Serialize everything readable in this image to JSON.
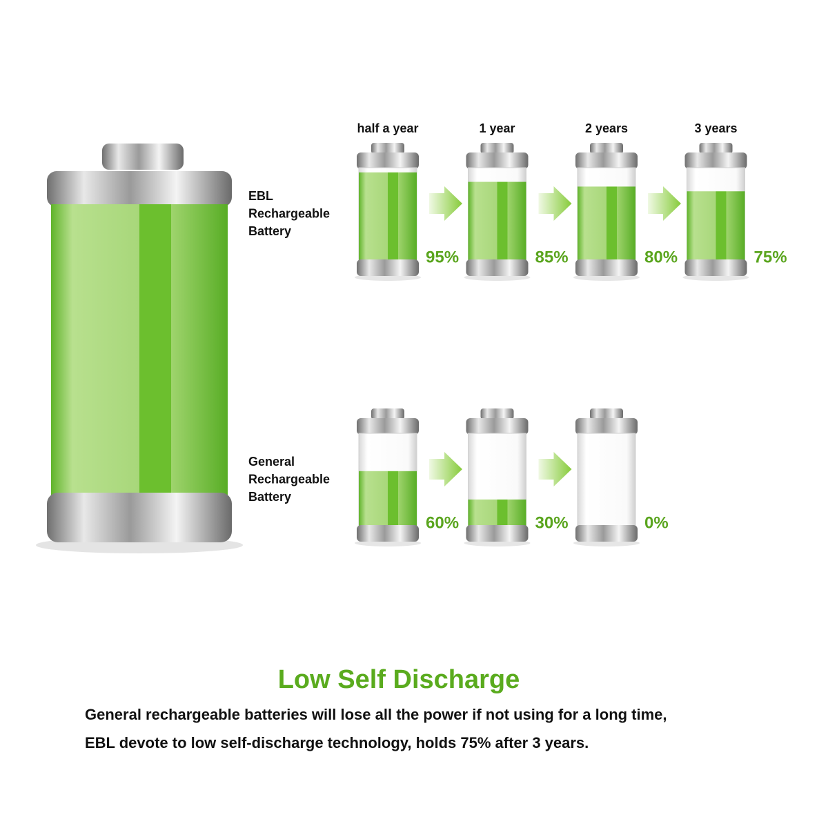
{
  "periods": [
    "half a year",
    "1 year",
    "2 years",
    "3 years"
  ],
  "rows": [
    {
      "label": [
        "EBL",
        "Rechargeable",
        "Battery"
      ],
      "levels": [
        {
          "value": 95,
          "label": "95%"
        },
        {
          "value": 85,
          "label": "85%"
        },
        {
          "value": 80,
          "label": "80%"
        },
        {
          "value": 75,
          "label": "75%"
        }
      ]
    },
    {
      "label": [
        "General",
        "Rechargeable",
        "Battery"
      ],
      "levels": [
        {
          "value": 60,
          "label": "60%"
        },
        {
          "value": 30,
          "label": "30%"
        },
        {
          "value": 0,
          "label": "0%"
        }
      ]
    }
  ],
  "title": "Low Self Discharge",
  "body": [
    "General rechargeable batteries will lose all the power if not using for a long time,",
    "EBL devote to low self-discharge technology, holds 75% after 3 years."
  ]
}
